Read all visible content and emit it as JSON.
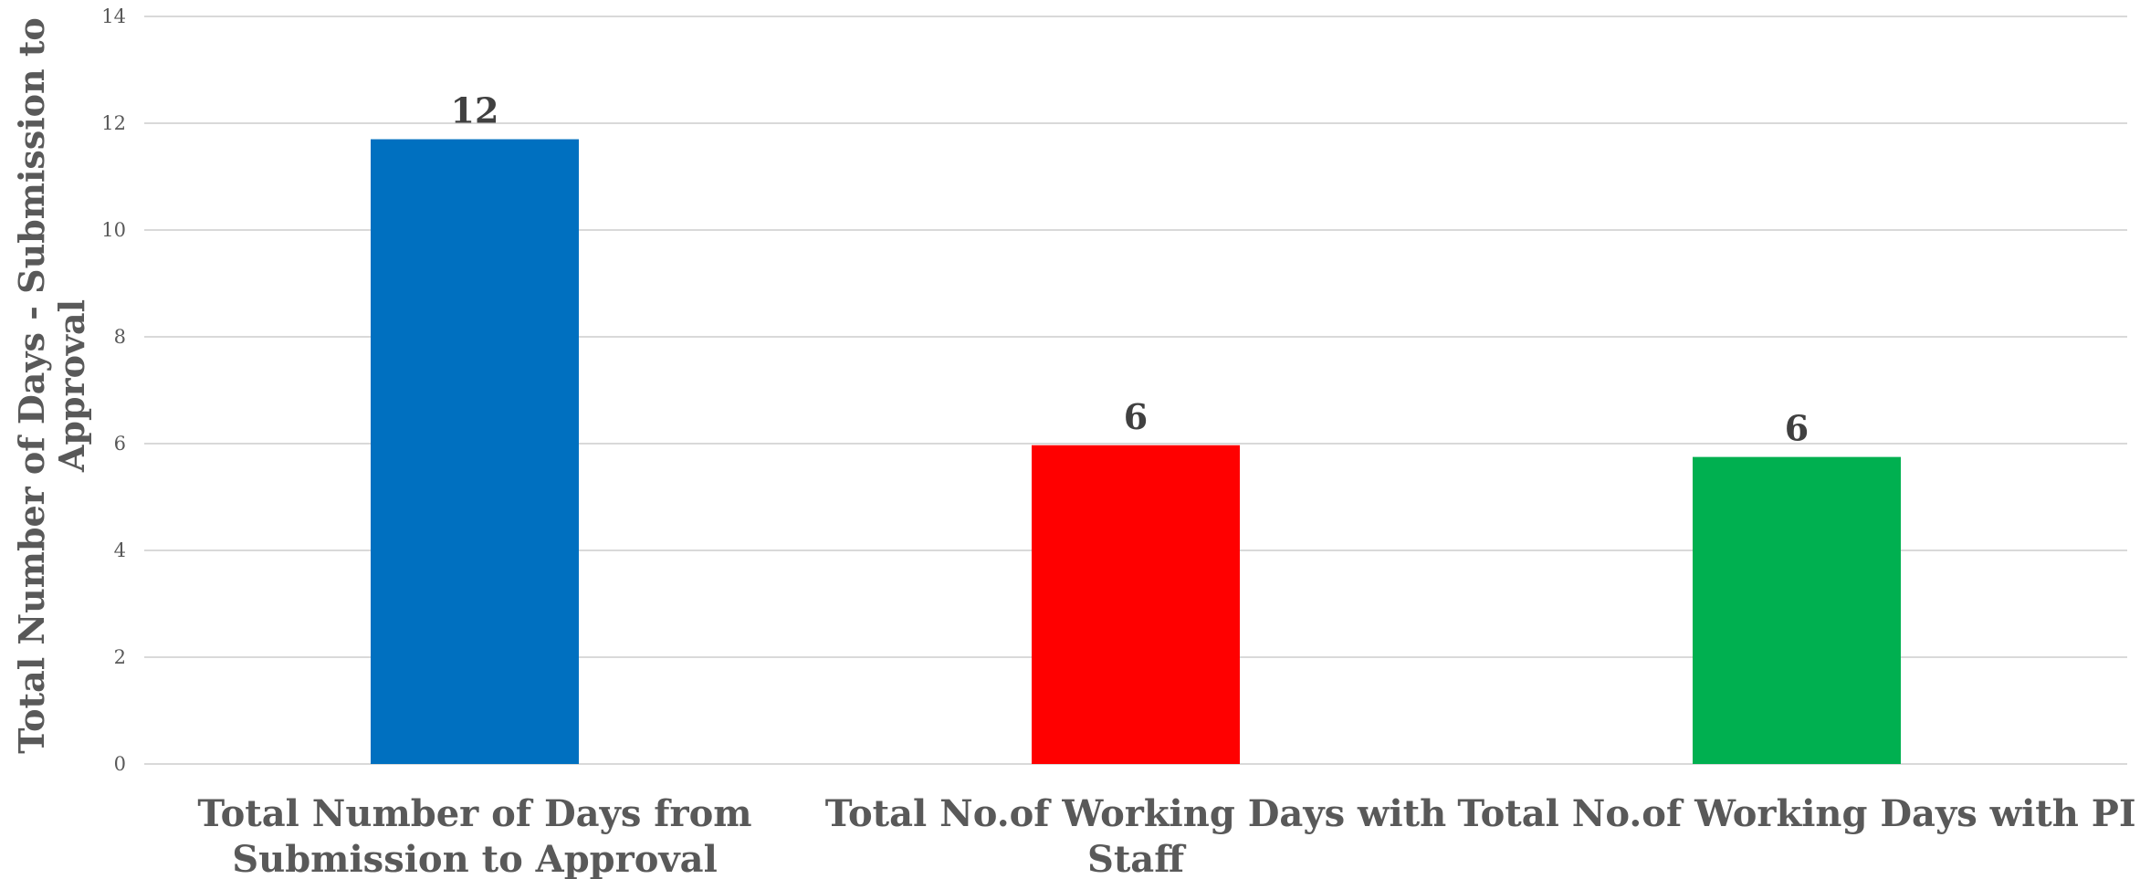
{
  "chart_data": {
    "type": "bar",
    "categories": [
      [
        "Total Number of Days from",
        "Submission to Approval"
      ],
      [
        "Total No.of Working Days with",
        "Staff"
      ],
      [
        "Total No.of Working Days with PI"
      ]
    ],
    "values": [
      11.7,
      5.97,
      5.75
    ],
    "data_labels": [
      "12",
      "6",
      "6"
    ],
    "colors": [
      "#0070C0",
      "#FF0000",
      "#00B050"
    ],
    "title": "",
    "xlabel": "",
    "ylabel": [
      "Total Number of Days - Submission to",
      "Approval"
    ],
    "ylim": [
      0,
      14
    ],
    "yticks": [
      "0",
      "2",
      "4",
      "6",
      "8",
      "10",
      "12",
      "14"
    ],
    "grid": true,
    "legend": "none"
  }
}
